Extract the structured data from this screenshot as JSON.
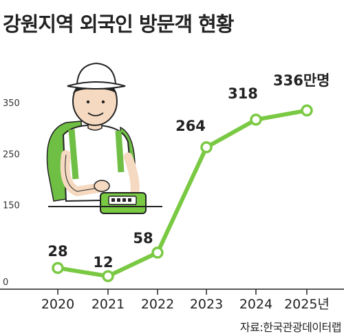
{
  "title": "강원지역 외국인 방문객 현황",
  "source": "자료:한국관광데이터랩",
  "colors": {
    "line": "#7ac943",
    "marker_fill": "#ffffff",
    "text": "#222222"
  },
  "illustration": "tourist-with-backpack-holding-card-reader",
  "chart_data": {
    "type": "line",
    "title": "강원지역 외국인 방문객 현황",
    "categories": [
      "2020",
      "2021",
      "2022",
      "2023",
      "2024",
      "2025년"
    ],
    "values": [
      28,
      12,
      58,
      264,
      318,
      336
    ],
    "data_labels": [
      "28",
      "12",
      "58",
      "264",
      "318",
      "336만명"
    ],
    "yticks": [
      "350",
      "250",
      "150",
      "0"
    ],
    "ytick_values": [
      350,
      250,
      150,
      0
    ],
    "ylim": [
      0,
      350
    ],
    "xlabel": "",
    "ylabel": "",
    "grid": false,
    "legend": "none"
  }
}
